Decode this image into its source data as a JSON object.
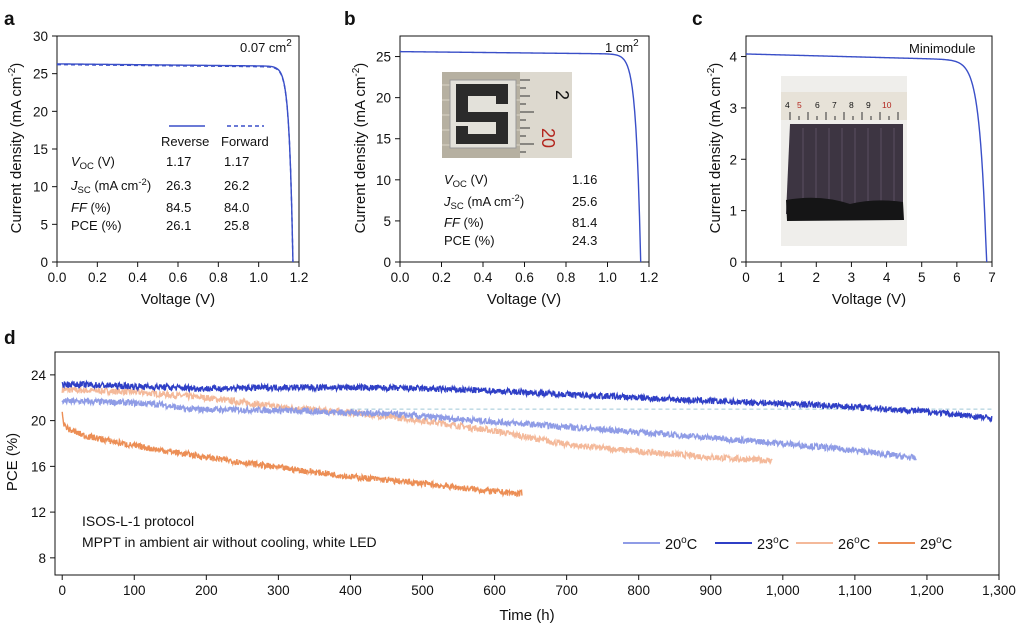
{
  "colors": {
    "jv": "#3a4fc8",
    "s20": "#8f9ce6",
    "s23": "#2f3fc6",
    "s26": "#f4b99a",
    "s29": "#ec8e55",
    "ref": "#9fc7d6"
  },
  "chart_data": [
    {
      "panel": "a",
      "type": "line",
      "annotation": "0.07 cm",
      "annotation_sup": "2",
      "xlabel": "Voltage (V)",
      "ylabel": "Current density (mA cm",
      "ylabel_sup": "-2",
      "ylabel_end": ")",
      "xlim": [
        0,
        1.2
      ],
      "ylim": [
        0,
        30
      ],
      "xticks": [
        "0.0",
        "0.2",
        "0.4",
        "0.6",
        "0.8",
        "1.0",
        "1.2"
      ],
      "yticks": [
        "0",
        "5",
        "10",
        "15",
        "20",
        "25",
        "30"
      ],
      "series": [
        {
          "name": "Reverse",
          "style": "solid",
          "jsc": 26.3,
          "voc": 1.17,
          "ff": 84.5
        },
        {
          "name": "Forward",
          "style": "dashed",
          "jsc": 26.2,
          "voc": 1.17,
          "ff": 84.0
        }
      ],
      "table": {
        "headers": [
          "Reverse",
          "Forward"
        ],
        "rows": [
          {
            "label": "V",
            "sub": "OC",
            "unit": " (V)",
            "values": [
              "1.17",
              "1.17"
            ]
          },
          {
            "label": "J",
            "sub": "SC",
            "unit": " (mA cm",
            "unit_sup": "-2",
            "unit_end": ")",
            "values": [
              "26.3",
              "26.2"
            ]
          },
          {
            "label": "FF",
            "unit": " (%)",
            "values": [
              "84.5",
              "84.0"
            ]
          },
          {
            "label": "PCE (%)",
            "values": [
              "26.1",
              "25.8"
            ]
          }
        ]
      }
    },
    {
      "panel": "b",
      "type": "line",
      "annotation": "1 cm",
      "annotation_sup": "2",
      "xlabel": "Voltage (V)",
      "ylabel": "Current density (mA cm",
      "ylabel_sup": "-2",
      "ylabel_end": ")",
      "xlim": [
        0,
        1.2
      ],
      "ylim": [
        0,
        27.5
      ],
      "xticks": [
        "0.0",
        "0.2",
        "0.4",
        "0.6",
        "0.8",
        "1.0",
        "1.2"
      ],
      "yticks": [
        "0",
        "5",
        "10",
        "15",
        "20",
        "25"
      ],
      "series": [
        {
          "jsc": 25.6,
          "voc": 1.16,
          "ff": 81.4
        }
      ],
      "inset_ruler_labels": [
        "2",
        "20"
      ],
      "table": {
        "rows": [
          {
            "label": "V",
            "sub": "OC",
            "unit": " (V)",
            "values": [
              "1.16"
            ]
          },
          {
            "label": "J",
            "sub": "SC",
            "unit": " (mA cm",
            "unit_sup": "-2",
            "unit_end": ")",
            "values": [
              "25.6"
            ]
          },
          {
            "label": "FF",
            "unit": " (%)",
            "values": [
              "81.4"
            ]
          },
          {
            "label": "PCE (%)",
            "values": [
              "24.3"
            ]
          }
        ]
      }
    },
    {
      "panel": "c",
      "type": "line",
      "annotation": "Minimodule",
      "xlabel": "Voltage (V)",
      "ylabel": "Current density (mA cm",
      "ylabel_sup": "-2",
      "ylabel_end": ")",
      "xlim": [
        0,
        7
      ],
      "ylim": [
        0,
        4.4
      ],
      "xticks": [
        "0",
        "1",
        "2",
        "3",
        "4",
        "5",
        "6",
        "7"
      ],
      "yticks": [
        "0",
        "1",
        "2",
        "3",
        "4"
      ],
      "series": [
        {
          "jsc": 4.05,
          "voc": 6.85,
          "ff": 79
        }
      ],
      "inset_ruler_labels": [
        "4",
        "5",
        "6",
        "7",
        "8",
        "9",
        "10"
      ]
    },
    {
      "panel": "d",
      "type": "line",
      "xlabel": "Time (h)",
      "ylabel": "PCE (%)",
      "xlim": [
        -10,
        1300
      ],
      "ylim": [
        6.5,
        26
      ],
      "xticks": [
        "0",
        "100",
        "200",
        "300",
        "400",
        "500",
        "600",
        "700",
        "800",
        "900",
        "1,000",
        "1,100",
        "1,200",
        "1,300"
      ],
      "yticks": [
        "8",
        "12",
        "16",
        "20",
        "24"
      ],
      "reference_line_y": 21.0,
      "annotations": [
        "ISOS-L-1 protocol",
        "MPPT in ambient air without cooling, white LED"
      ],
      "series": [
        {
          "name": "20",
          "unit": "C",
          "color_key": "s20",
          "points": [
            [
              0,
              21.7
            ],
            [
              80,
              21.6
            ],
            [
              140,
              21.4
            ],
            [
              170,
              21.0
            ],
            [
              300,
              20.9
            ],
            [
              450,
              20.6
            ],
            [
              600,
              19.9
            ],
            [
              800,
              19.0
            ],
            [
              1000,
              18.0
            ],
            [
              1100,
              17.4
            ],
            [
              1185,
              16.7
            ]
          ]
        },
        {
          "name": "23",
          "unit": "C",
          "color_key": "s23",
          "points": [
            [
              0,
              23.2
            ],
            [
              100,
              23.0
            ],
            [
              200,
              22.8
            ],
            [
              300,
              22.9
            ],
            [
              400,
              22.9
            ],
            [
              500,
              22.8
            ],
            [
              600,
              22.6
            ],
            [
              700,
              22.3
            ],
            [
              800,
              22.0
            ],
            [
              900,
              21.7
            ],
            [
              1000,
              21.5
            ],
            [
              1100,
              21.2
            ],
            [
              1200,
              20.8
            ],
            [
              1290,
              20.2
            ]
          ]
        },
        {
          "name": "26",
          "unit": "C",
          "color_key": "s26",
          "points": [
            [
              0,
              22.7
            ],
            [
              100,
              22.5
            ],
            [
              200,
              22.0
            ],
            [
              300,
              21.2
            ],
            [
              400,
              20.7
            ],
            [
              500,
              20.0
            ],
            [
              600,
              19.1
            ],
            [
              650,
              18.5
            ],
            [
              700,
              17.9
            ],
            [
              800,
              17.3
            ],
            [
              900,
              16.8
            ],
            [
              985,
              16.5
            ]
          ]
        },
        {
          "name": "29",
          "unit": "C",
          "color_key": "s29",
          "points": [
            [
              0,
              20.5
            ],
            [
              3,
              19.6
            ],
            [
              10,
              19.2
            ],
            [
              30,
              18.7
            ],
            [
              60,
              18.3
            ],
            [
              100,
              17.8
            ],
            [
              200,
              16.8
            ],
            [
              300,
              15.9
            ],
            [
              400,
              15.1
            ],
            [
              500,
              14.5
            ],
            [
              600,
              13.8
            ],
            [
              638,
              13.6
            ]
          ]
        }
      ]
    }
  ]
}
